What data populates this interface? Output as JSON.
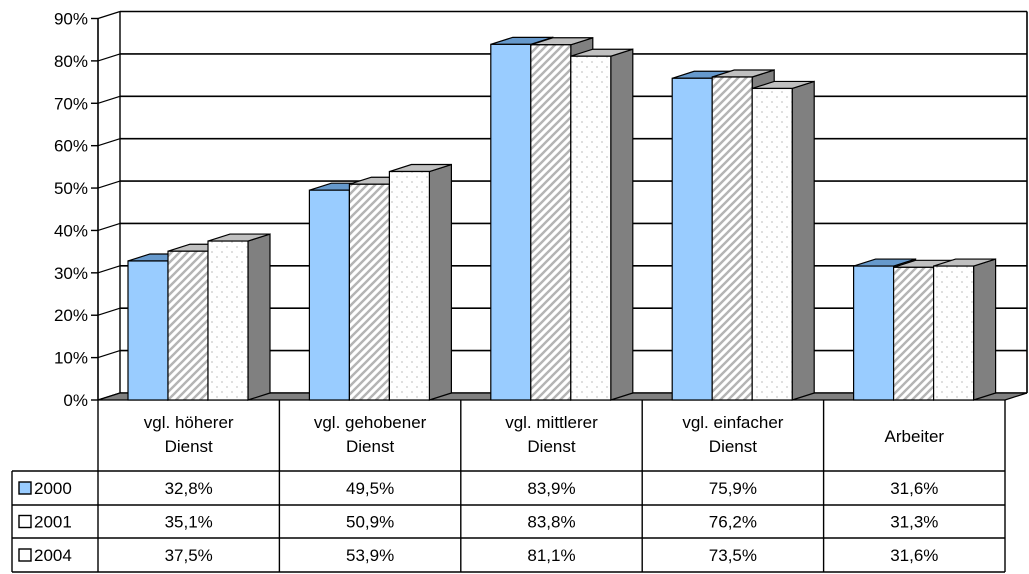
{
  "chart_data": {
    "type": "bar",
    "title": "",
    "xlabel": "",
    "ylabel": "",
    "ylim": [
      0,
      90
    ],
    "y_ticks": [
      "0%",
      "10%",
      "20%",
      "30%",
      "40%",
      "50%",
      "60%",
      "70%",
      "80%",
      "90%"
    ],
    "grid": true,
    "legend": "data-table",
    "categories": [
      [
        "vgl. höherer",
        "Dienst"
      ],
      [
        "vgl. gehobener",
        "Dienst"
      ],
      [
        "vgl. mittlerer",
        "Dienst"
      ],
      [
        "vgl. einfacher",
        "Dienst"
      ],
      [
        "Arbeiter"
      ]
    ],
    "series": [
      {
        "name": "2000",
        "color": "#99ccff",
        "values": [
          32.8,
          49.5,
          83.9,
          75.9,
          31.6
        ],
        "labels": [
          "32,8%",
          "49,5%",
          "83,9%",
          "75,9%",
          "31,6%"
        ]
      },
      {
        "name": "2001",
        "color": "#c8c8c8",
        "values": [
          35.1,
          50.9,
          83.8,
          76.2,
          31.3
        ],
        "labels": [
          "35,1%",
          "50,9%",
          "83,8%",
          "76,2%",
          "31,3%"
        ]
      },
      {
        "name": "2004",
        "color": "#ffffff",
        "values": [
          37.5,
          53.9,
          81.1,
          73.5,
          31.6
        ],
        "labels": [
          "37,5%",
          "53,9%",
          "81,1%",
          "73,5%",
          "31,6%"
        ]
      }
    ]
  }
}
